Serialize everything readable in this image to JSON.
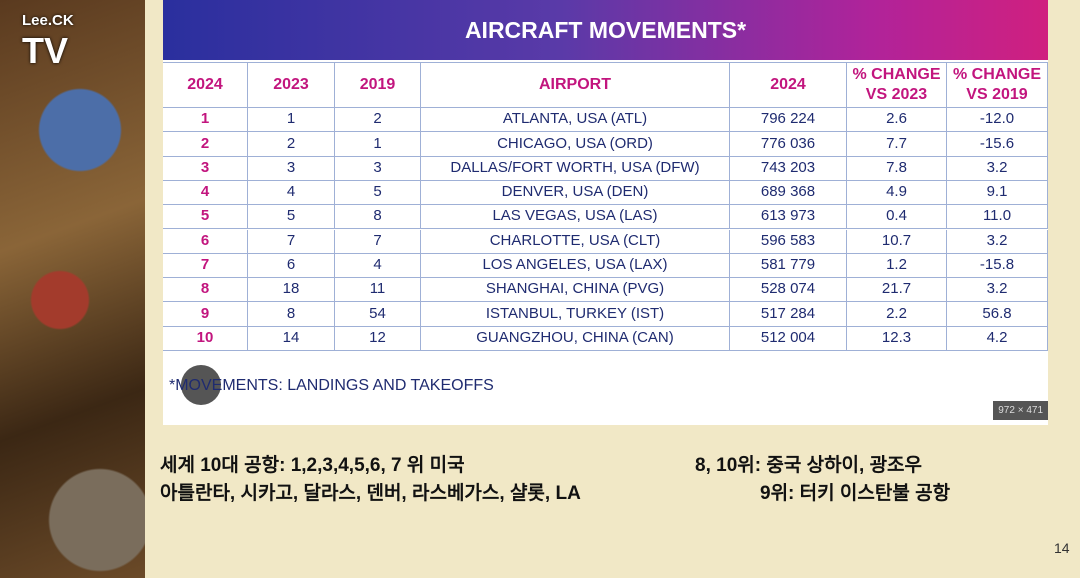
{
  "logo": {
    "line1": "Lee.CK",
    "line2": "TV"
  },
  "table": {
    "title": "AIRCRAFT MOVEMENTS*",
    "headers": [
      [
        "2024"
      ],
      [
        "2023"
      ],
      [
        "2019"
      ],
      [
        "AIRPORT"
      ],
      [
        "2024"
      ],
      [
        "% CHANGE",
        "VS 2023"
      ],
      [
        "% CHANGE",
        "VS 2019"
      ]
    ],
    "rows": [
      [
        "1",
        "1",
        "2",
        "ATLANTA, USA (ATL)",
        "796 224",
        "2.6",
        "-12.0"
      ],
      [
        "2",
        "2",
        "1",
        "CHICAGO, USA (ORD)",
        "776 036",
        "7.7",
        "-15.6"
      ],
      [
        "3",
        "3",
        "3",
        "DALLAS/FORT WORTH, USA (DFW)",
        "743 203",
        "7.8",
        "3.2"
      ],
      [
        "4",
        "4",
        "5",
        "DENVER, USA (DEN)",
        "689 368",
        "4.9",
        "9.1"
      ],
      [
        "5",
        "5",
        "8",
        "LAS VEGAS, USA (LAS)",
        "613 973",
        "0.4",
        "11.0"
      ],
      [
        "6",
        "7",
        "7",
        "CHARLOTTE, USA (CLT)",
        "596 583",
        "10.7",
        "3.2"
      ],
      [
        "7",
        "6",
        "4",
        "LOS ANGELES, USA (LAX)",
        "581 779",
        "1.2",
        "-15.8"
      ],
      [
        "8",
        "18",
        "11",
        "SHANGHAI, CHINA (PVG)",
        "528 074",
        "21.7",
        "3.2"
      ],
      [
        "9",
        "8",
        "54",
        "ISTANBUL, TURKEY (IST)",
        "517 284",
        "2.2",
        "56.8"
      ],
      [
        "10",
        "14",
        "12",
        "GUANGZHOU, CHINA (CAN)",
        "512 004",
        "12.3",
        "4.2"
      ]
    ],
    "footnote": "*MOVEMENTS: LANDINGS AND TAKEOFFS",
    "image_size": "972 × 471"
  },
  "notes": {
    "left": [
      "세계 10대 공항: 1,2,3,4,5,6, 7 위 미국",
      "아틀란타, 시카고, 달라스, 덴버, 라스베가스, 샬롯, LA"
    ],
    "right": [
      "8, 10위: 중국 상하이, 광조우",
      "9위: 터키 이스탄불 공항"
    ]
  },
  "page_number": "14"
}
